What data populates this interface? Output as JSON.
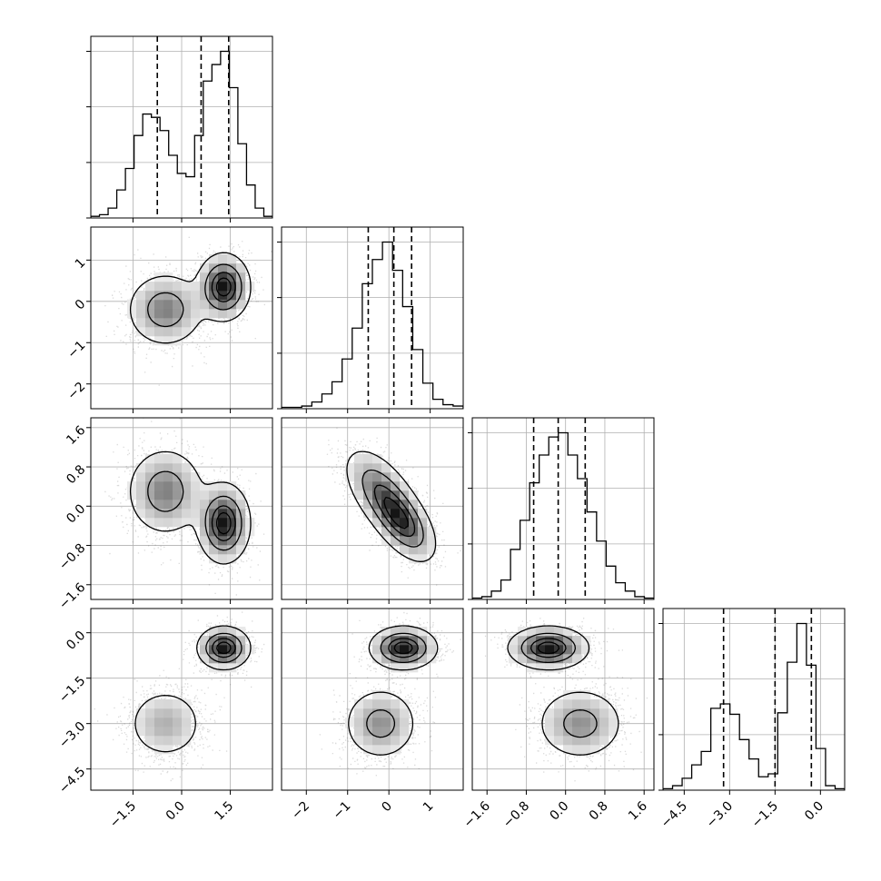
{
  "chart_data": {
    "type": "corner",
    "title": "",
    "grid": true,
    "parameters": [
      {
        "range": [
          -2.8,
          2.8
        ],
        "ticks": [
          -1.5,
          0.0,
          1.5
        ],
        "tick_labels": [
          "−1.5",
          "0.0",
          "1.5"
        ],
        "quantiles": [
          -0.75,
          0.6,
          1.45
        ]
      },
      {
        "range": [
          -2.6,
          1.8
        ],
        "ticks": [
          -2,
          -1,
          0,
          1
        ],
        "tick_labels": [
          "−2",
          "−1",
          "0",
          "1"
        ],
        "quantiles": [
          -0.5,
          0.12,
          0.55
        ]
      },
      {
        "range": [
          -1.9,
          1.8
        ],
        "ticks": [
          -1.6,
          -0.8,
          0.0,
          0.8,
          1.6
        ],
        "tick_labels": [
          "−1.6",
          "−0.8",
          "0.0",
          "0.8",
          "1.6"
        ],
        "quantiles": [
          -0.65,
          -0.15,
          0.4
        ]
      },
      {
        "range": [
          -5.2,
          0.8
        ],
        "ticks": [
          -4.5,
          -3.0,
          -1.5,
          0.0
        ],
        "tick_labels": [
          "−4.5",
          "−3.0",
          "−1.5",
          "0.0"
        ],
        "quantiles": [
          -3.2,
          -1.5,
          -0.3
        ]
      }
    ],
    "histograms": [
      [
        1,
        2,
        6,
        17,
        30,
        50,
        63,
        61,
        53,
        38,
        27,
        25,
        50,
        83,
        93,
        101,
        79,
        45,
        20,
        6,
        1
      ],
      [
        1,
        1,
        2,
        5,
        11,
        20,
        37,
        60,
        93,
        111,
        124,
        103,
        76,
        44,
        19,
        7,
        3,
        2
      ],
      [
        1,
        2,
        6,
        14,
        36,
        57,
        84,
        104,
        117,
        120,
        104,
        87,
        63,
        42,
        24,
        12,
        6,
        2,
        1
      ],
      [
        1,
        3,
        8,
        17,
        26,
        55,
        58,
        51,
        34,
        21,
        9,
        11,
        52,
        86,
        112,
        84,
        28,
        3,
        1
      ]
    ],
    "components": [
      {
        "weight": 0.5,
        "mean": [
          -0.5,
          -0.2,
          0.3,
          -3.0
        ],
        "sd": [
          0.6,
          0.45,
          0.45,
          0.6
        ],
        "corr": [
          [
            1,
            0,
            0,
            0
          ],
          [
            0,
            1,
            0,
            0
          ],
          [
            0,
            0,
            1,
            0
          ],
          [
            0,
            0,
            0,
            1
          ]
        ]
      },
      {
        "weight": 0.5,
        "mean": [
          1.3,
          0.35,
          -0.35,
          -0.5
        ],
        "sd": [
          0.4,
          0.4,
          0.4,
          0.35
        ],
        "corr": [
          [
            1,
            0,
            0,
            0
          ],
          [
            0,
            1,
            0,
            0
          ],
          [
            0,
            0,
            1,
            0
          ],
          [
            0,
            0,
            0,
            1
          ]
        ]
      }
    ],
    "panel_correlations": {
      "1-2": -0.55
    },
    "contour_levels": [
      0.118,
      0.393,
      0.675,
      0.865
    ]
  }
}
